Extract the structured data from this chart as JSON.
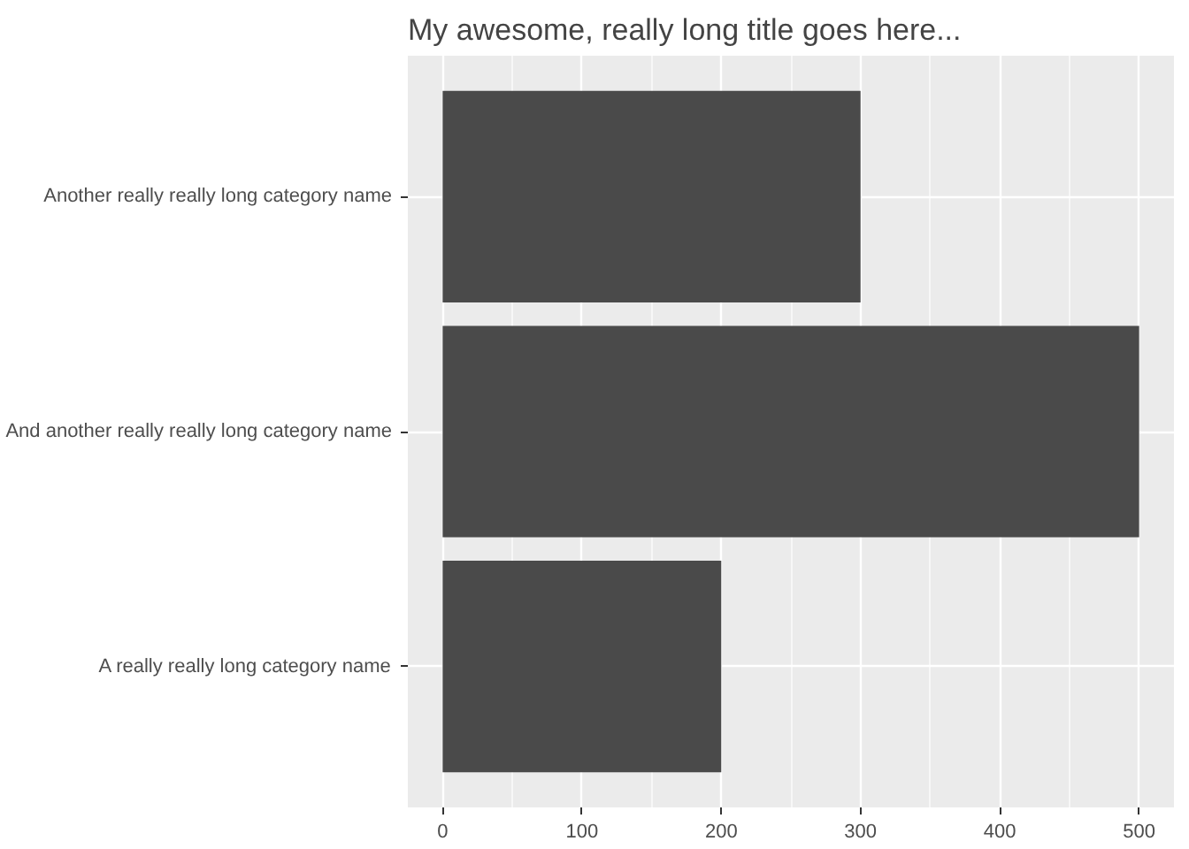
{
  "chart_data": {
    "type": "bar",
    "orientation": "horizontal",
    "title": "My awesome, really long title goes here...",
    "categories": [
      "Another really really long category name",
      "And another really really long category name",
      "A really really long category name"
    ],
    "values": [
      300,
      500,
      200
    ],
    "color": "#4a4a4a",
    "xlim": [
      -25,
      525
    ],
    "xticks": [
      0,
      100,
      200,
      300,
      400,
      500
    ],
    "grid": true
  }
}
